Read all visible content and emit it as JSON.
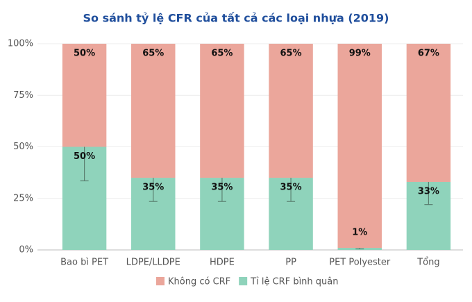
{
  "chart_data": {
    "type": "stacked-bar",
    "title": "So sánh tỷ lệ CFR của tất cả các loại nhựa (2019)",
    "categories": [
      "Bao bì PET",
      "LDPE/LLDPE",
      "HDPE",
      "PP",
      "PET Polyester",
      "Tổng"
    ],
    "series": [
      {
        "name": "Không có CRF",
        "color": "#eba69b",
        "values": [
          50,
          65,
          65,
          65,
          99,
          67
        ],
        "value_labels": [
          "50%",
          "65%",
          "65%",
          "65%",
          "99%",
          "67%"
        ]
      },
      {
        "name": "Tỉ lệ CRF bình quân",
        "color": "#8fd3bb",
        "values": [
          50,
          35,
          35,
          35,
          1,
          33
        ],
        "value_labels": [
          "50%",
          "35%",
          "35%",
          "35%",
          "1%",
          "33%"
        ],
        "errors": [
          16.5,
          11.5,
          11.5,
          11.5,
          0.5,
          11
        ]
      }
    ],
    "ylim": [
      0,
      100
    ],
    "yticks": [
      {
        "value": 0,
        "label": "0%"
      },
      {
        "value": 25,
        "label": "25%"
      },
      {
        "value": 50,
        "label": "50%"
      },
      {
        "value": 75,
        "label": "75%"
      },
      {
        "value": 100,
        "label": "100%"
      }
    ],
    "grid": true,
    "legend": "bottom"
  }
}
